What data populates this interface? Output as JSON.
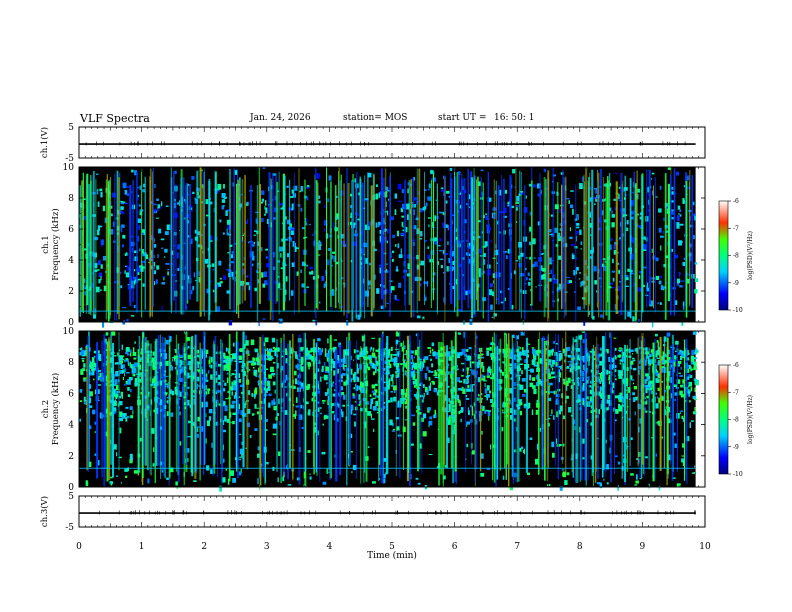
{
  "header": {
    "title": "VLF Spectra",
    "date": "Jan. 24, 2026",
    "station": "station= MOS",
    "start_label": "start  UT  =",
    "start_time": "16: 50: 1"
  },
  "chart_data": {
    "type": "heatmap",
    "title": "VLF Spectra",
    "x": {
      "label": "Time  (min)",
      "range": [
        0,
        10
      ],
      "ticks": [
        "0",
        "1",
        "2",
        "3",
        "4",
        "5",
        "6",
        "7",
        "8",
        "9",
        "10"
      ],
      "data_extent": [
        0,
        9.85
      ]
    },
    "panels": [
      {
        "name": "ch.1(V)",
        "kind": "waveform",
        "ylabel": "ch.1(V)",
        "ylim": [
          -5,
          5
        ],
        "ticks": [
          "5",
          "-5"
        ],
        "level": -0.5
      },
      {
        "name": "ch.1 spectrogram",
        "kind": "spectrogram",
        "ylabel_top": "ch.1",
        "ylabel": "Frequency  (kHz)",
        "ylim": [
          0,
          10
        ],
        "ticks": [
          "0",
          "2",
          "4",
          "6",
          "8",
          "10"
        ],
        "colorbar": {
          "label": "log(PSD)(V²/Hz)",
          "range": [
            -10,
            -6
          ],
          "ticks": [
            "-6",
            "-7",
            "-8",
            "-9",
            "-10"
          ]
        }
      },
      {
        "name": "ch.2 spectrogram",
        "kind": "spectrogram",
        "ylabel_top": "ch.2",
        "ylabel": "Frequency  (kHz)",
        "ylim": [
          0,
          10
        ],
        "ticks": [
          "0",
          "2",
          "4",
          "6",
          "8",
          "10"
        ],
        "colorbar": {
          "label": "log(PSD)(V²/Hz)",
          "range": [
            -10,
            -6
          ],
          "ticks": [
            "-6",
            "-7",
            "-8",
            "-9",
            "-10"
          ]
        }
      },
      {
        "name": "ch.3(V)",
        "kind": "waveform",
        "ylabel": "ch.3(V)",
        "ylim": [
          -5,
          5
        ],
        "ticks": [
          "5",
          "-5"
        ],
        "level": -0.5
      }
    ]
  }
}
